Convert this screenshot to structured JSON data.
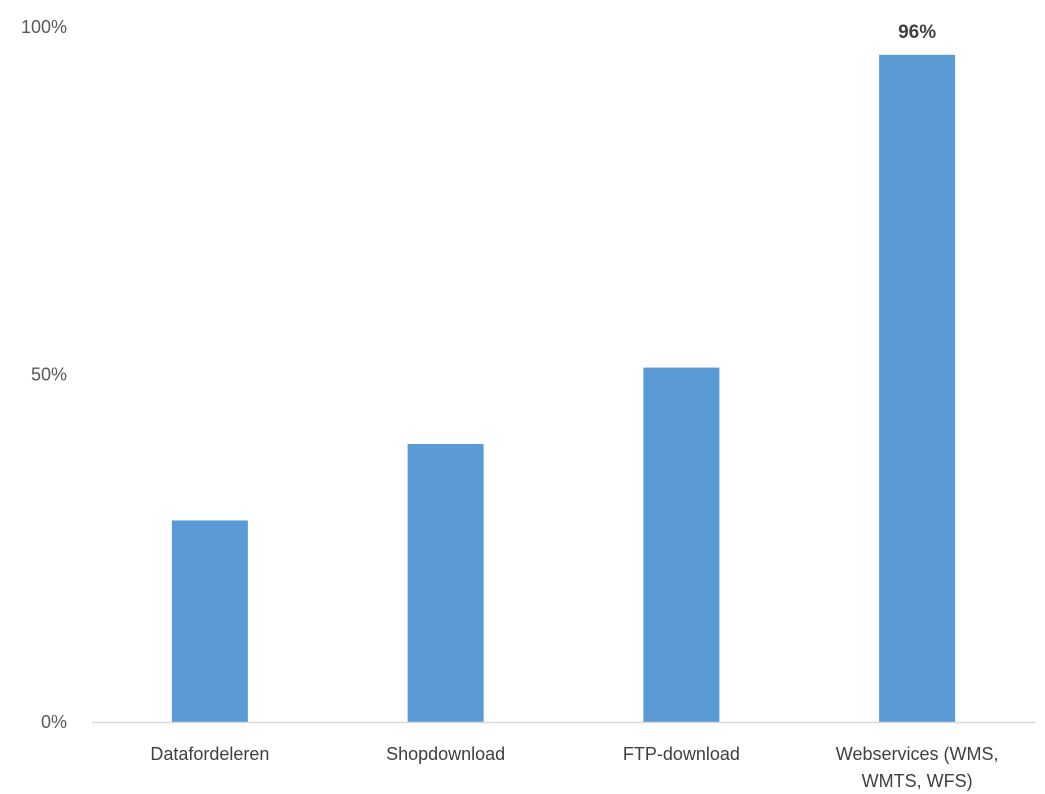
{
  "chart_data": {
    "type": "bar",
    "categories": [
      [
        "Datafordeleren"
      ],
      [
        "Shopdownload"
      ],
      [
        "FTP-download"
      ],
      [
        "Webservices (WMS,",
        "WMTS, WFS)"
      ]
    ],
    "values": [
      29,
      40,
      51,
      96
    ],
    "data_labels": [
      "",
      "",
      "",
      "96%"
    ],
    "y_ticks": [
      {
        "value": 0,
        "label": "0%"
      },
      {
        "value": 50,
        "label": "50%"
      },
      {
        "value": 100,
        "label": "100%"
      }
    ],
    "ylim": [
      0,
      100
    ],
    "grid": false,
    "legend": "none",
    "title": "",
    "xlabel": "",
    "ylabel": "",
    "colors": {
      "bar": "#5b9bd5",
      "axis": "#d9d9d9"
    }
  }
}
